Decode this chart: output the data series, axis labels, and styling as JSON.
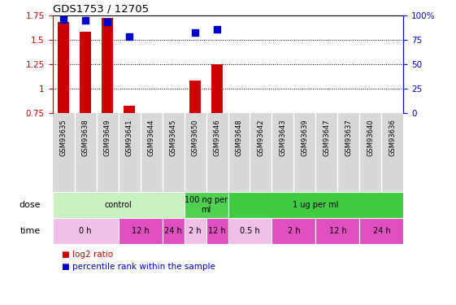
{
  "title": "GDS1753 / 12705",
  "samples": [
    "GSM93635",
    "GSM93638",
    "GSM93649",
    "GSM93641",
    "GSM93644",
    "GSM93645",
    "GSM93650",
    "GSM93646",
    "GSM93648",
    "GSM93642",
    "GSM93643",
    "GSM93639",
    "GSM93647",
    "GSM93637",
    "GSM93640",
    "GSM93636"
  ],
  "log2_ratio": [
    1.68,
    1.58,
    1.72,
    0.82,
    null,
    null,
    1.08,
    1.25,
    null,
    null,
    null,
    null,
    null,
    null,
    null,
    null
  ],
  "pct_rank": [
    96,
    95,
    93,
    78,
    null,
    null,
    82,
    86,
    null,
    null,
    null,
    null,
    null,
    null,
    null,
    null
  ],
  "ylim_left": [
    0.75,
    1.75
  ],
  "ylim_right": [
    0,
    100
  ],
  "yticks_left": [
    0.75,
    1.0,
    1.25,
    1.5,
    1.75
  ],
  "yticks_right": [
    0,
    25,
    50,
    75,
    100
  ],
  "ytick_labels_left": [
    "0.75",
    "1",
    "1.25",
    "1.5",
    "1.75"
  ],
  "ytick_labels_right": [
    "0",
    "25",
    "50",
    "75",
    "100%"
  ],
  "dose_groups": [
    {
      "label": "control",
      "start": 0,
      "end": 6,
      "color": "#c8f0c0"
    },
    {
      "label": "100 ng per\nml",
      "start": 6,
      "end": 8,
      "color": "#50d050"
    },
    {
      "label": "1 ug per ml",
      "start": 8,
      "end": 16,
      "color": "#40cc40"
    }
  ],
  "time_groups": [
    {
      "label": "0 h",
      "start": 0,
      "end": 3,
      "color": "#f0c0e8"
    },
    {
      "label": "12 h",
      "start": 3,
      "end": 5,
      "color": "#e050c0"
    },
    {
      "label": "24 h",
      "start": 5,
      "end": 6,
      "color": "#e050c0"
    },
    {
      "label": "2 h",
      "start": 6,
      "end": 7,
      "color": "#f0c0e8"
    },
    {
      "label": "12 h",
      "start": 7,
      "end": 8,
      "color": "#e050c0"
    },
    {
      "label": "0.5 h",
      "start": 8,
      "end": 10,
      "color": "#f0c0e8"
    },
    {
      "label": "2 h",
      "start": 10,
      "end": 12,
      "color": "#e050c0"
    },
    {
      "label": "12 h",
      "start": 12,
      "end": 14,
      "color": "#e050c0"
    },
    {
      "label": "24 h",
      "start": 14,
      "end": 16,
      "color": "#e050c0"
    }
  ],
  "bar_color": "#cc0000",
  "dot_color": "#0000cc",
  "bar_width": 0.5,
  "dot_size": 28,
  "tick_color_left": "#cc0000",
  "tick_color_right": "#0000cc",
  "sample_label_bg": "#d8d8d8",
  "legend_red_label": "log2 ratio",
  "legend_blue_label": "percentile rank within the sample",
  "dose_label": "dose",
  "time_label": "time"
}
